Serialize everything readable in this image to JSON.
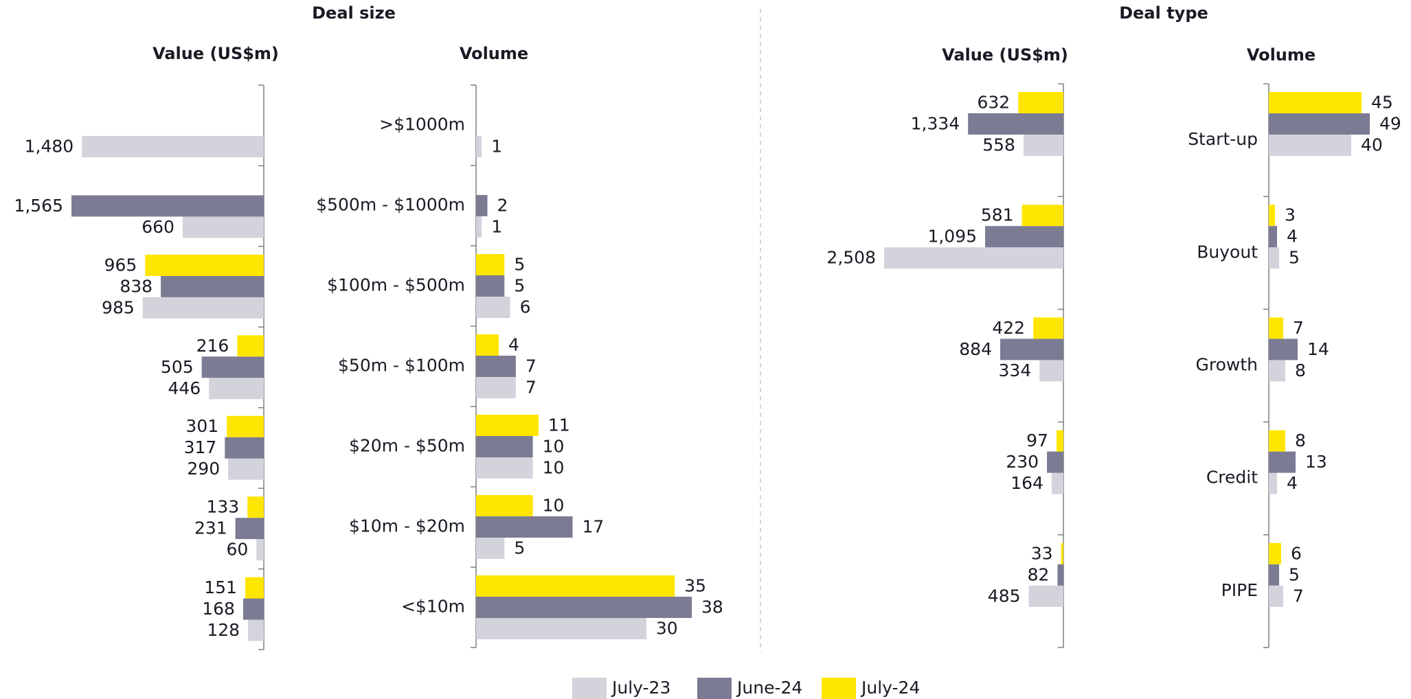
{
  "chart_data": [
    {
      "type": "bar",
      "orientation": "horizontal",
      "direction": "left",
      "supertitle": "Deal size",
      "title": "Value (US$m)",
      "series": [
        {
          "name": "July-23",
          "color": "#d3d3dc",
          "values": [
            1480,
            660,
            985,
            446,
            290,
            60,
            128
          ],
          "value_labels": [
            "1,480",
            "660",
            "985",
            "446",
            "290",
            "60",
            "128"
          ]
        },
        {
          "name": "June-24",
          "color": "#7b7b93",
          "values": [
            null,
            1565,
            838,
            505,
            317,
            231,
            168
          ],
          "value_labels": [
            null,
            "1,565",
            "838",
            "505",
            "317",
            "231",
            "168"
          ]
        },
        {
          "name": "July-24",
          "color": "#ffe600",
          "values": [
            null,
            null,
            965,
            216,
            301,
            133,
            151
          ],
          "value_labels": [
            null,
            null,
            "965",
            "216",
            "301",
            "133",
            "151"
          ]
        }
      ]
    },
    {
      "type": "bar",
      "orientation": "horizontal",
      "direction": "right",
      "title": "Volume",
      "categories": [
        ">$1000m",
        "$500m - $1000m",
        "$100m - $500m",
        "$50m - $100m",
        "$20m - $50m",
        "$10m - $20m",
        "<$10m"
      ],
      "series": [
        {
          "color": "#d3d3dc",
          "values": [
            1,
            1,
            6,
            7,
            10,
            5,
            30
          ]
        },
        {
          "color": "#7b7b93",
          "values": [
            null,
            2,
            5,
            7,
            10,
            17,
            38
          ]
        },
        {
          "color": "#ffe600",
          "values": [
            null,
            null,
            5,
            4,
            11,
            10,
            35
          ]
        }
      ]
    },
    {
      "type": "bar",
      "orientation": "horizontal",
      "direction": "left",
      "supertitle": "Deal type",
      "title": "Value (US$m)",
      "series": [
        {
          "color": "#d3d3dc",
          "values": [
            558,
            2508,
            334,
            164,
            485
          ],
          "value_labels": [
            "558",
            "2,508",
            "334",
            "164",
            "485"
          ]
        },
        {
          "color": "#7b7b93",
          "values": [
            1334,
            1095,
            884,
            230,
            82
          ],
          "value_labels": [
            "1,334",
            "1,095",
            "884",
            "230",
            "82"
          ]
        },
        {
          "color": "#ffe600",
          "values": [
            632,
            581,
            422,
            97,
            33
          ],
          "value_labels": [
            "632",
            "581",
            "422",
            "97",
            "33"
          ]
        }
      ]
    },
    {
      "type": "bar",
      "orientation": "horizontal",
      "direction": "right",
      "title": "Volume",
      "categories": [
        "Start-up",
        "Buyout",
        "Growth",
        "Credit",
        "PIPE"
      ],
      "series": [
        {
          "color": "#d3d3dc",
          "values": [
            40,
            5,
            8,
            4,
            7
          ]
        },
        {
          "color": "#7b7b93",
          "values": [
            49,
            4,
            14,
            13,
            5
          ]
        },
        {
          "color": "#ffe600",
          "values": [
            45,
            3,
            7,
            8,
            6
          ]
        }
      ]
    }
  ]
}
